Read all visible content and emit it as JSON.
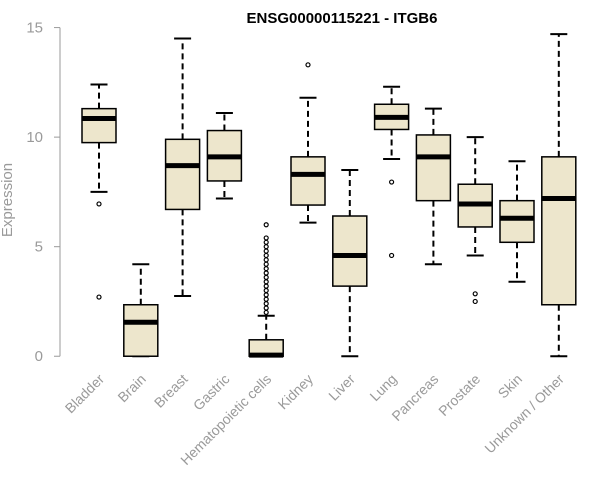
{
  "chart_data": {
    "type": "box",
    "title": "ENSG00000115221 - ITGB6",
    "xlabel": "",
    "ylabel": "Expression",
    "ylim": [
      -0.4,
      15.3
    ],
    "yticks": [
      0,
      5,
      10,
      15
    ],
    "grid": false,
    "legend": "none",
    "box_fill": "#ede6cc",
    "box_stroke": "#000000",
    "categories": [
      "Bladder",
      "Brain",
      "Breast",
      "Gastric",
      "Hematopoietic cells",
      "Kidney",
      "Liver",
      "Lung",
      "Pancreas",
      "Prostate",
      "Skin",
      "Unknown / Other"
    ],
    "boxes": [
      {
        "category": "Bladder",
        "whisker_low": 7.5,
        "q1": 9.75,
        "median": 10.85,
        "q3": 11.3,
        "whisker_high": 12.4,
        "outliers": [
          6.95,
          2.7
        ]
      },
      {
        "category": "Brain",
        "whisker_low": 0.0,
        "q1": 0.0,
        "median": 1.55,
        "q3": 2.35,
        "whisker_high": 4.2,
        "outliers": []
      },
      {
        "category": "Breast",
        "whisker_low": 2.75,
        "q1": 6.7,
        "median": 8.7,
        "q3": 9.9,
        "whisker_high": 14.5,
        "outliers": []
      },
      {
        "category": "Gastric",
        "whisker_low": 7.2,
        "q1": 8.0,
        "median": 9.1,
        "q3": 10.3,
        "whisker_high": 11.1,
        "outliers": []
      },
      {
        "category": "Hematopoietic cells",
        "whisker_low": 0.0,
        "q1": 0.0,
        "median": 0.05,
        "q3": 0.75,
        "whisker_high": 1.85,
        "outliers": [
          2.0,
          2.2,
          2.4,
          2.6,
          2.8,
          3.0,
          3.2,
          3.4,
          3.6,
          3.8,
          4.0,
          4.2,
          4.4,
          4.6,
          4.8,
          5.0,
          5.2,
          5.4,
          6.0
        ]
      },
      {
        "category": "Kidney",
        "whisker_low": 6.1,
        "q1": 6.9,
        "median": 8.3,
        "q3": 9.1,
        "whisker_high": 11.8,
        "outliers": [
          13.3
        ]
      },
      {
        "category": "Liver",
        "whisker_low": 0.0,
        "q1": 3.2,
        "median": 4.6,
        "q3": 6.4,
        "whisker_high": 8.5,
        "outliers": []
      },
      {
        "category": "Lung",
        "whisker_low": 9.0,
        "q1": 10.35,
        "median": 10.9,
        "q3": 11.5,
        "whisker_high": 12.3,
        "outliers": [
          7.95,
          4.6
        ]
      },
      {
        "category": "Pancreas",
        "whisker_low": 4.2,
        "q1": 7.1,
        "median": 9.1,
        "q3": 10.1,
        "whisker_high": 11.3,
        "outliers": []
      },
      {
        "category": "Prostate",
        "whisker_low": 4.6,
        "q1": 5.9,
        "median": 6.95,
        "q3": 7.85,
        "whisker_high": 10.0,
        "outliers": [
          2.85,
          2.5
        ]
      },
      {
        "category": "Skin",
        "whisker_low": 3.4,
        "q1": 5.2,
        "median": 6.3,
        "q3": 7.1,
        "whisker_high": 8.9,
        "outliers": []
      },
      {
        "category": "Unknown / Other",
        "whisker_low": 0.0,
        "q1": 2.35,
        "median": 7.2,
        "q3": 9.1,
        "whisker_high": 14.7,
        "outliers": []
      }
    ]
  }
}
